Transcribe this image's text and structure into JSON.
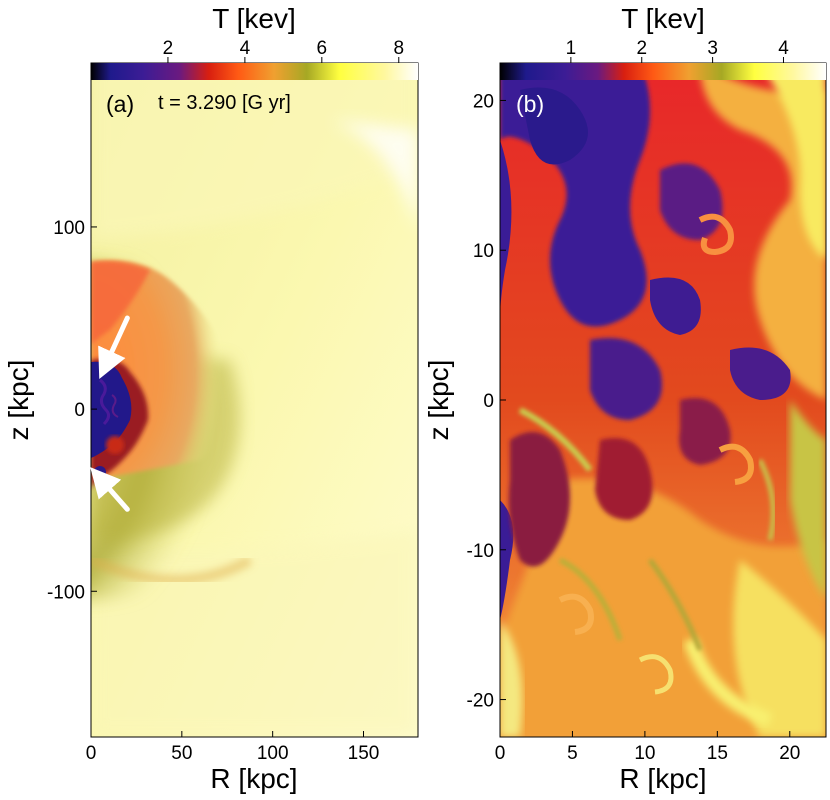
{
  "chart_data": [
    {
      "type": "heatmap",
      "panel_label": "(a)",
      "annotation": "t = 3.290 [G yr]",
      "colorbar": {
        "label": "T [kev]",
        "range": [
          0,
          8.5
        ],
        "ticks": [
          2,
          4,
          6,
          8
        ],
        "tick_labels": [
          "2",
          "4",
          "6",
          "8"
        ]
      },
      "xlabel": "R [kpc]",
      "ylabel": "z [kpc]",
      "xlim": [
        0,
        180
      ],
      "ylim": [
        -180,
        190
      ],
      "xticks": [
        0,
        50,
        100,
        150
      ],
      "xtick_labels": [
        "0",
        "50",
        "100",
        "150"
      ],
      "yticks": [
        -100,
        0,
        100
      ],
      "ytick_labels": [
        "-100",
        "0",
        "100"
      ],
      "arrows": [
        {
          "from": [
            20,
            50
          ],
          "to": [
            8,
            24
          ]
        },
        {
          "from": [
            20,
            -55
          ],
          "to": [
            5,
            -38
          ]
        }
      ]
    },
    {
      "type": "heatmap",
      "panel_label": "(b)",
      "colorbar": {
        "label": "T [kev]",
        "range": [
          0,
          4.6
        ],
        "ticks": [
          1,
          2,
          3,
          4
        ],
        "tick_labels": [
          "1",
          "2",
          "3",
          "4"
        ]
      },
      "xlabel": "R [kpc]",
      "ylabel": "z [kpc]",
      "xlim": [
        0,
        22.5
      ],
      "ylim": [
        -22.5,
        22.5
      ],
      "xticks": [
        0,
        5,
        10,
        15,
        20
      ],
      "xtick_labels": [
        "0",
        "5",
        "10",
        "15",
        "20"
      ],
      "yticks": [
        -20,
        -10,
        0,
        10,
        20
      ],
      "ytick_labels": [
        "-20",
        "-10",
        "0",
        "10",
        "20"
      ]
    }
  ],
  "colors": {
    "colormap": [
      "#000000",
      "#1f1a8c",
      "#4a1f9e",
      "#8a1a5a",
      "#d81f10",
      "#ff5a14",
      "#f0a030",
      "#a6a824",
      "#ffff40",
      "#fff8a0",
      "#ffffff"
    ]
  }
}
